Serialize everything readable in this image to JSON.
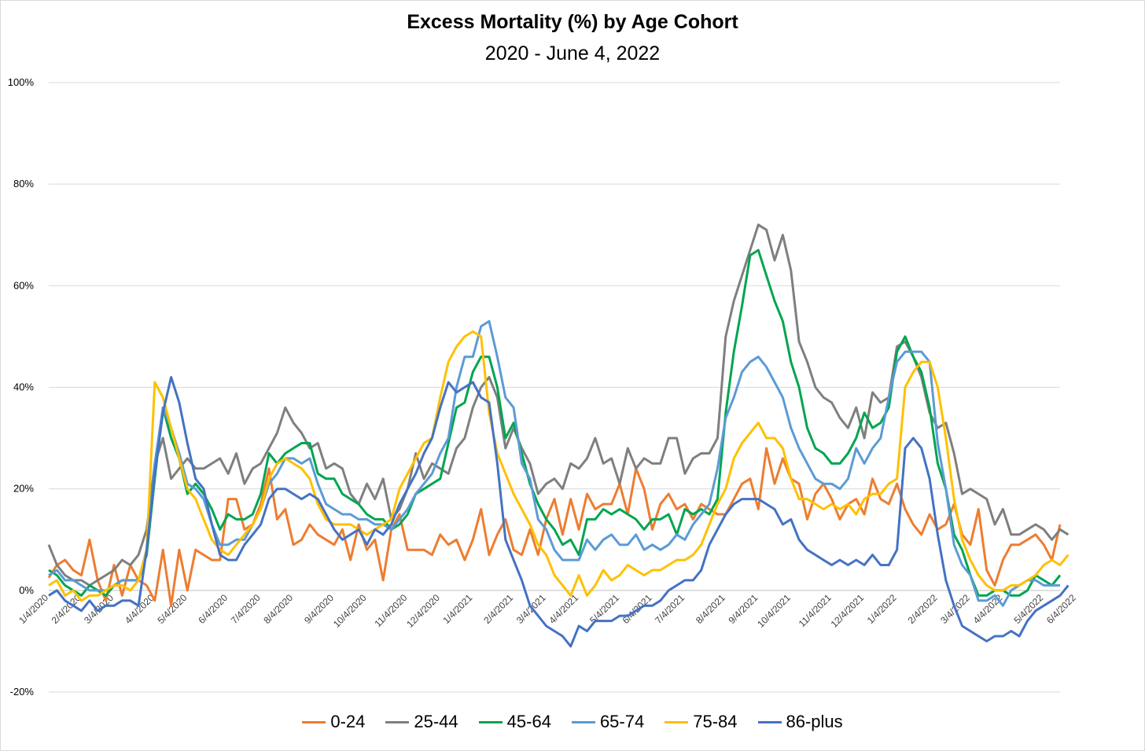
{
  "chart_data": {
    "type": "line",
    "title": "Excess Mortality (%) by Age Cohort",
    "subtitle": "2020 - June 4, 2022",
    "xlabel": "",
    "ylabel": "",
    "ylim": [
      -20,
      100
    ],
    "y_ticks": [
      "-20%",
      "0%",
      "20%",
      "40%",
      "60%",
      "80%",
      "100%"
    ],
    "y_tick_values": [
      -20,
      0,
      20,
      40,
      60,
      80,
      100
    ],
    "x_tick_labels": [
      "1/4/2020",
      "2/4/2020",
      "3/4/2020",
      "4/4/2020",
      "5/4/2020",
      "6/4/2020",
      "7/4/2020",
      "8/4/2020",
      "9/4/2020",
      "10/4/2020",
      "11/4/2020",
      "12/4/2020",
      "1/4/2021",
      "2/4/2021",
      "3/4/2021",
      "4/4/2021",
      "5/4/2021",
      "6/4/2021",
      "7/4/2021",
      "8/4/2021",
      "9/4/2021",
      "10/4/2021",
      "11/4/2021",
      "12/4/2021",
      "1/4/2022",
      "2/4/2022",
      "3/4/2022",
      "4/4/2022",
      "5/4/2022",
      "6/4/2022"
    ],
    "x_tick_positions": [
      0,
      4,
      8,
      13,
      17,
      22,
      26,
      30,
      35,
      39,
      44,
      48,
      52,
      57,
      61,
      65,
      70,
      74,
      78,
      83,
      87,
      91,
      96,
      100,
      104,
      109,
      113,
      117,
      122,
      126
    ],
    "grid": true,
    "legend_position": "bottom",
    "series": [
      {
        "name": "0-24",
        "color": "#ED7D31",
        "values": [
          2.5,
          5,
          6,
          4,
          3,
          10,
          2,
          -2,
          5,
          -1,
          5,
          2,
          1,
          -2,
          8,
          -3,
          8,
          0,
          8,
          7,
          6,
          6,
          18,
          18,
          12,
          13,
          17,
          24,
          14,
          16,
          9,
          10,
          13,
          11,
          10,
          9,
          12,
          6,
          13,
          8,
          10,
          2,
          12,
          15,
          8,
          8,
          8,
          7,
          11,
          9,
          10,
          6,
          10,
          16,
          7,
          11,
          14,
          8,
          7,
          12,
          7,
          14,
          18,
          11,
          18,
          12,
          19,
          16,
          17,
          17,
          21,
          15,
          24,
          20,
          12,
          17,
          19,
          16,
          17,
          14,
          17,
          16,
          15,
          15,
          18,
          21,
          22,
          16,
          28,
          21,
          26,
          22,
          21,
          14,
          19,
          21,
          18,
          14,
          17,
          18,
          15,
          22,
          18,
          17,
          21,
          16,
          13,
          11,
          15,
          12,
          13,
          17,
          11,
          9,
          16,
          4,
          1,
          6,
          9,
          9,
          10,
          11,
          9,
          6,
          13
        ]
      },
      {
        "name": "25-44",
        "color": "#7F7F7F",
        "values": [
          9,
          5,
          3,
          2,
          2,
          1,
          2,
          3,
          4,
          6,
          5,
          7,
          12,
          25,
          30,
          22,
          24,
          26,
          24,
          24,
          25,
          26,
          23,
          27,
          21,
          24,
          25,
          28,
          31,
          36,
          33,
          31,
          28,
          29,
          24,
          25,
          24,
          19,
          17,
          21,
          18,
          22,
          14,
          16,
          20,
          27,
          22,
          25,
          24,
          23,
          28,
          30,
          36,
          40,
          42,
          38,
          28,
          32,
          28,
          25,
          19,
          21,
          22,
          20,
          25,
          24,
          26,
          30,
          25,
          26,
          21,
          28,
          24,
          26,
          25,
          25,
          30,
          30,
          23,
          26,
          27,
          27,
          30,
          50,
          57,
          62,
          67,
          72,
          71,
          65,
          70,
          63,
          49,
          45,
          40,
          38,
          37,
          34,
          32,
          36,
          30,
          39,
          37,
          38,
          48,
          49,
          46,
          42,
          35,
          32,
          33,
          27,
          19,
          20,
          19,
          18,
          13,
          16,
          11,
          11,
          12,
          13,
          12,
          10,
          12,
          11
        ]
      },
      {
        "name": "45-64",
        "color": "#00A550",
        "values": [
          4,
          3,
          1,
          0,
          -1,
          1,
          0,
          -1,
          1,
          2,
          2,
          2,
          7,
          22,
          36,
          30,
          26,
          19,
          21,
          19,
          16,
          12,
          15,
          14,
          14,
          15,
          19,
          27,
          25,
          27,
          28,
          29,
          29,
          23,
          22,
          22,
          19,
          18,
          17,
          15,
          14,
          14,
          12,
          13,
          15,
          19,
          20,
          21,
          22,
          29,
          36,
          37,
          43,
          46,
          46,
          40,
          30,
          33,
          27,
          21,
          17,
          14,
          12,
          9,
          10,
          7,
          14,
          14,
          16,
          15,
          16,
          15,
          14,
          12,
          14,
          14,
          15,
          11,
          16,
          15,
          16,
          15,
          18,
          35,
          47,
          56,
          66,
          67,
          62,
          57,
          53,
          45,
          40,
          32,
          28,
          27,
          25,
          25,
          27,
          30,
          35,
          32,
          33,
          36,
          47,
          50,
          46,
          43,
          36,
          25,
          20,
          11,
          8,
          3,
          -1,
          -1,
          0,
          0,
          -1,
          -1,
          0,
          3,
          2,
          1,
          3
        ]
      },
      {
        "name": "65-74",
        "color": "#5B9BD5",
        "values": [
          3,
          4,
          2,
          2,
          1,
          0,
          0,
          0,
          1,
          2,
          2,
          2,
          8,
          25,
          36,
          32,
          27,
          21,
          20,
          18,
          13,
          9,
          9,
          10,
          10,
          13,
          16,
          21,
          23,
          26,
          26,
          25,
          26,
          21,
          17,
          16,
          15,
          15,
          14,
          14,
          13,
          13,
          12,
          14,
          16,
          19,
          21,
          23,
          27,
          30,
          40,
          46,
          46,
          52,
          53,
          46,
          38,
          36,
          25,
          22,
          14,
          12,
          8,
          6,
          6,
          6,
          10,
          8,
          10,
          11,
          9,
          9,
          11,
          8,
          9,
          8,
          9,
          11,
          10,
          13,
          15,
          17,
          24,
          34,
          38,
          43,
          45,
          46,
          44,
          41,
          38,
          32,
          28,
          25,
          22,
          21,
          21,
          20,
          22,
          28,
          25,
          28,
          30,
          38,
          45,
          47,
          47,
          47,
          45,
          29,
          20,
          9,
          5,
          3,
          -2,
          -2,
          -1,
          -3,
          0,
          1,
          2,
          2,
          1,
          1,
          1
        ]
      },
      {
        "name": "75-84",
        "color": "#FFC000",
        "values": [
          1,
          2,
          -1,
          0,
          -2,
          -1,
          -1,
          0,
          1,
          1,
          0,
          2,
          8,
          41,
          38,
          32,
          26,
          20,
          18,
          14,
          10,
          8,
          7,
          9,
          11,
          13,
          16,
          22,
          25,
          26,
          25,
          24,
          22,
          17,
          14,
          13,
          13,
          13,
          12,
          11,
          12,
          13,
          14,
          20,
          23,
          26,
          29,
          30,
          38,
          45,
          48,
          50,
          51,
          50,
          35,
          27,
          23,
          19,
          16,
          13,
          9,
          7,
          3,
          1,
          -1,
          3,
          -1,
          1,
          4,
          2,
          3,
          5,
          4,
          3,
          4,
          4,
          5,
          6,
          6,
          7,
          9,
          13,
          17,
          20,
          26,
          29,
          31,
          33,
          30,
          30,
          28,
          22,
          18,
          18,
          17,
          16,
          17,
          16,
          17,
          15,
          18,
          19,
          19,
          21,
          22,
          40,
          43,
          45,
          45,
          40,
          30,
          18,
          10,
          6,
          3,
          1,
          0,
          0,
          1,
          1,
          2,
          3,
          5,
          6,
          5,
          7
        ]
      },
      {
        "name": "86-plus",
        "color": "#4472C4",
        "values": [
          -1,
          0,
          -2,
          -3,
          -4,
          -2,
          -4,
          -3,
          -3,
          -2,
          -2,
          -3,
          8,
          23,
          35,
          42,
          37,
          29,
          22,
          20,
          13,
          7,
          6,
          6,
          9,
          11,
          13,
          18,
          20,
          20,
          19,
          18,
          19,
          18,
          15,
          12,
          10,
          11,
          12,
          9,
          12,
          11,
          13,
          17,
          20,
          23,
          27,
          30,
          36,
          41,
          39,
          40,
          41,
          38,
          37,
          25,
          10,
          6,
          2,
          -3,
          -5,
          -7,
          -8,
          -9,
          -11,
          -7,
          -8,
          -6,
          -6,
          -6,
          -5,
          -5,
          -4,
          -3,
          -3,
          -2,
          0,
          1,
          2,
          2,
          4,
          9,
          12,
          15,
          17,
          18,
          18,
          18,
          17,
          16,
          13,
          14,
          10,
          8,
          7,
          6,
          5,
          6,
          5,
          6,
          5,
          7,
          5,
          5,
          8,
          28,
          30,
          28,
          22,
          11,
          2,
          -3,
          -7,
          -8,
          -9,
          -10,
          -9,
          -9,
          -8,
          -9,
          -6,
          -4,
          -3,
          -2,
          -1,
          1
        ]
      }
    ]
  }
}
